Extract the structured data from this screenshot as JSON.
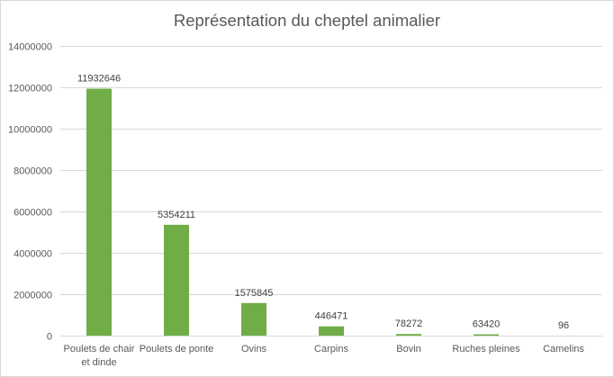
{
  "chart_data": {
    "type": "bar",
    "title": "Représentation du cheptel animalier",
    "xlabel": "",
    "ylabel": "",
    "categories": [
      [
        "Poulets de chair",
        "et dinde"
      ],
      [
        "Poulets de ponte"
      ],
      [
        "Ovins"
      ],
      [
        "Carpins"
      ],
      [
        "Bovin"
      ],
      [
        "Ruches pleines"
      ],
      [
        "Camelins"
      ]
    ],
    "values": [
      11932646,
      5354211,
      1575845,
      446471,
      78272,
      63420,
      96
    ],
    "value_labels": [
      "11932646",
      "5354211",
      "1575845",
      "446471",
      "78272",
      "63420",
      "96"
    ],
    "ylim": [
      0,
      14000000
    ],
    "y_ticks": [
      0,
      2000000,
      4000000,
      6000000,
      8000000,
      10000000,
      12000000,
      14000000
    ],
    "y_tick_labels": [
      "0",
      "2000000",
      "4000000",
      "6000000",
      "8000000",
      "10000000",
      "12000000",
      "14000000"
    ],
    "grid": true,
    "legend": "none",
    "colors": {
      "bar": "#70ad47",
      "grid": "#d9d9d9",
      "axis_text": "#595959",
      "border": "#d9d9d9"
    }
  }
}
